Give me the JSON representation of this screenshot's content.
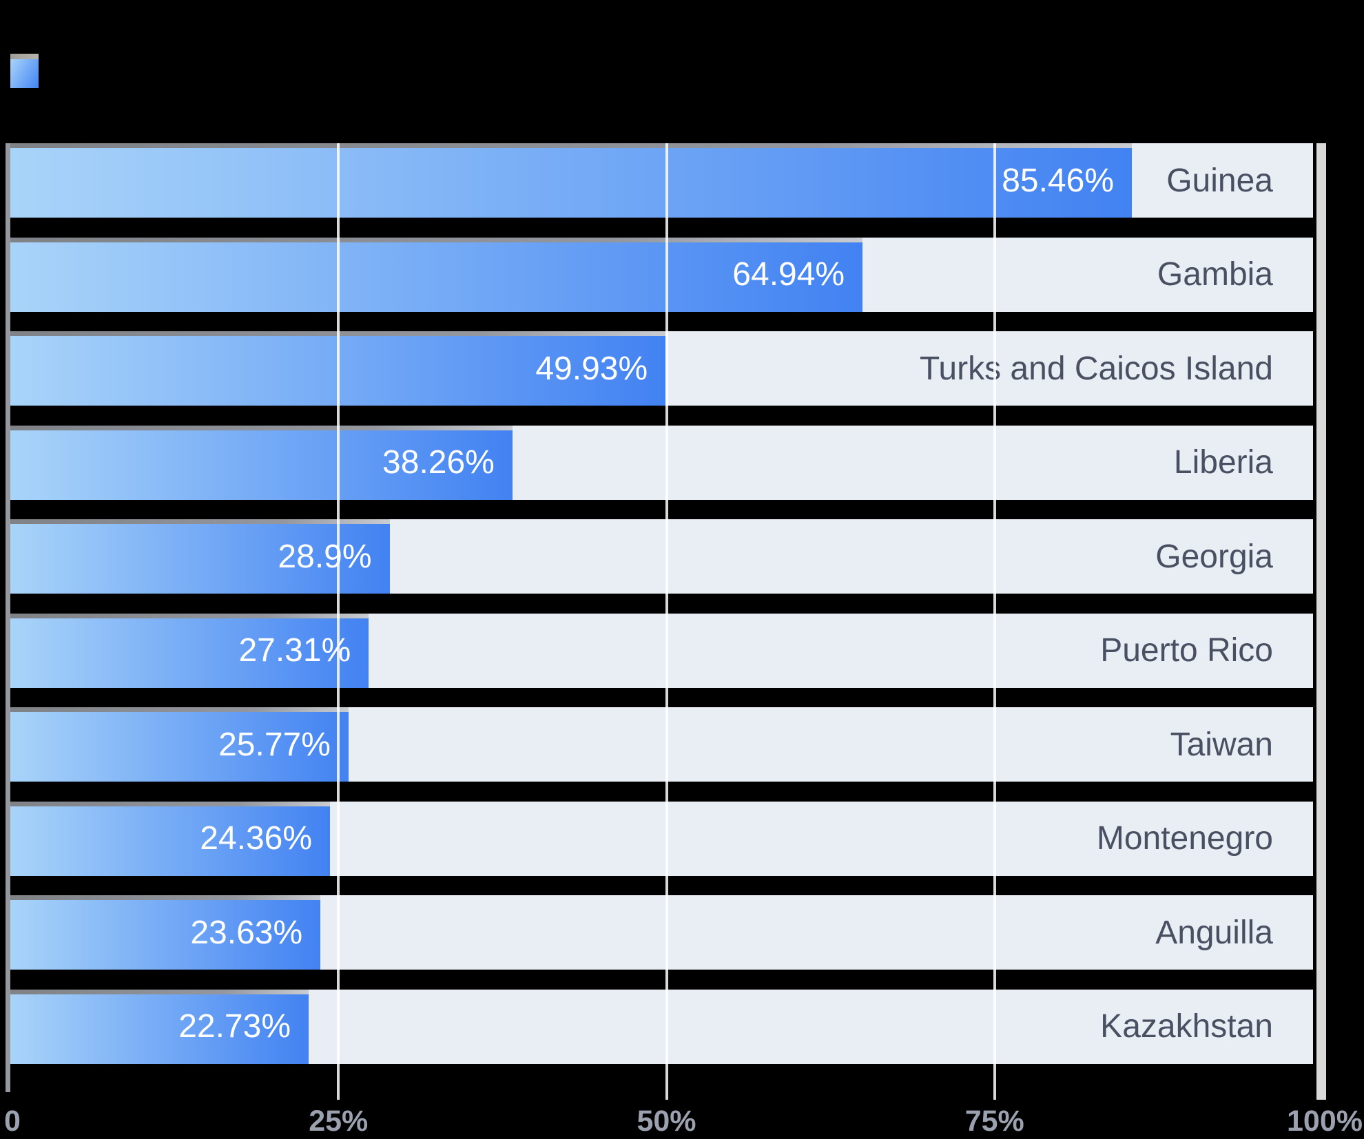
{
  "chart": {
    "background": "#000000",
    "track_background": "#e9edf4",
    "bar_gradient_start": "#a9d4f9",
    "bar_gradient_end": "#4282f2",
    "bar_top_border_start": "#7f8287",
    "bar_top_border_end": "#c9ccd1",
    "value_label_color": "#ffffff",
    "category_label_color": "#495061",
    "axis_label_color": "#9ba1ae",
    "axis_line_color": "#95989f",
    "gridline_color": "rgba(255,255,255,0.85)"
  },
  "legend": {
    "swatch": "bar-series-swatch"
  },
  "chart_data": {
    "type": "bar",
    "orientation": "horizontal",
    "categories": [
      "Guinea",
      "Gambia",
      "Turks and Caicos Island",
      "Liberia",
      "Georgia",
      "Puerto Rico",
      "Taiwan",
      "Montenegro",
      "Anguilla",
      "Kazakhstan"
    ],
    "values": [
      85.46,
      64.94,
      49.93,
      38.26,
      28.9,
      27.31,
      25.77,
      24.36,
      23.63,
      22.73
    ],
    "value_labels": [
      "85.46%",
      "64.94%",
      "49.93%",
      "38.26%",
      "28.9%",
      "27.31%",
      "25.77%",
      "24.36%",
      "23.63%",
      "22.73%"
    ],
    "x_tick_labels": [
      "0",
      "25%",
      "50%",
      "75%",
      "100%"
    ],
    "xlim": [
      0,
      100
    ],
    "grid": true,
    "legend_position": "top-left",
    "sort": "descending"
  }
}
